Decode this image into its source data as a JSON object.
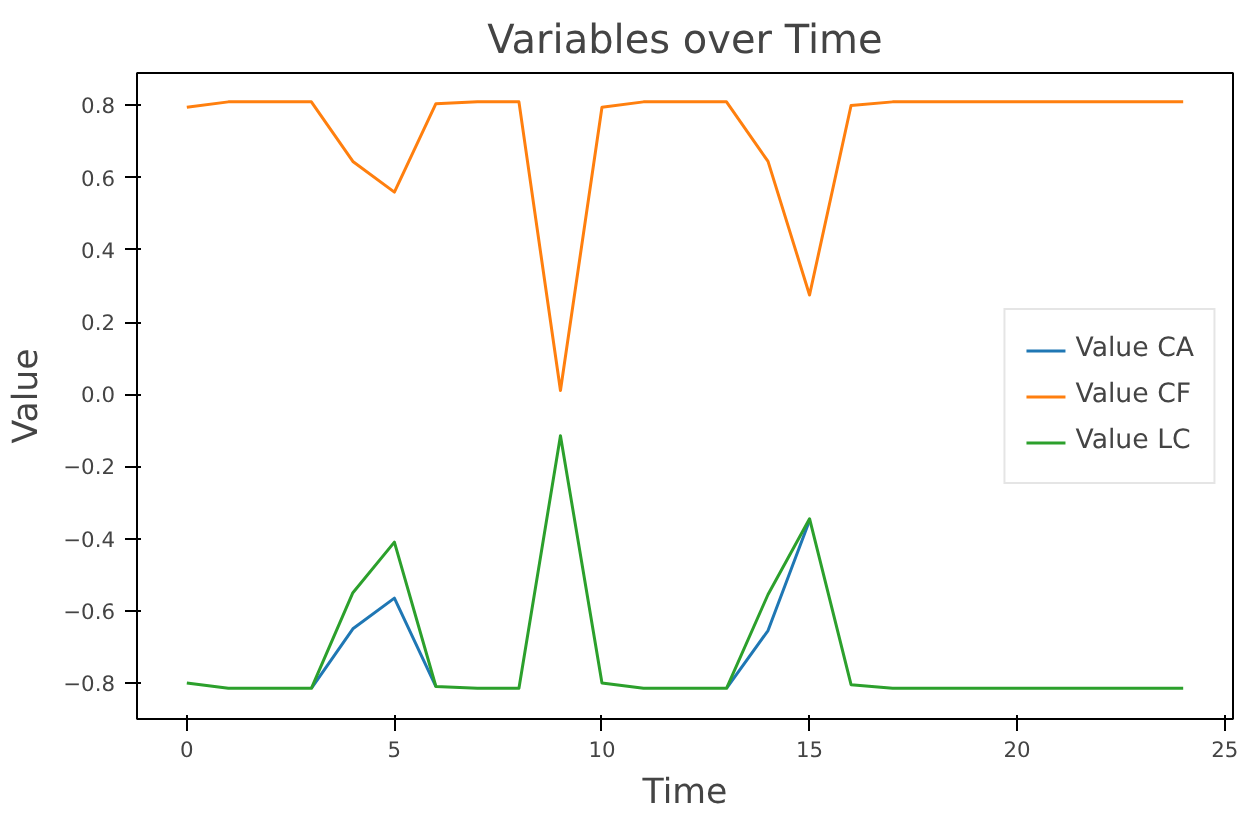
{
  "chart_data": {
    "type": "line",
    "title": "Variables over Time",
    "xlabel": "Time",
    "ylabel": "Value",
    "x": [
      0,
      1,
      2,
      3,
      4,
      5,
      6,
      7,
      8,
      9,
      10,
      11,
      12,
      13,
      14,
      15,
      16,
      17,
      18,
      19,
      20,
      21,
      22,
      23,
      24
    ],
    "series": [
      {
        "name": "Value CA",
        "color": "#1f77b4",
        "values": [
          null,
          null,
          null,
          -0.815,
          -0.65,
          -0.565,
          -0.81,
          null,
          null,
          null,
          null,
          null,
          null,
          -0.815,
          -0.655,
          -0.35,
          null,
          null,
          null,
          null,
          null,
          null,
          null,
          null,
          null
        ]
      },
      {
        "name": "Value CF",
        "color": "#ff7f0e",
        "values": [
          0.795,
          0.81,
          0.81,
          0.81,
          0.645,
          0.56,
          0.805,
          0.81,
          0.81,
          0.01,
          0.795,
          0.81,
          0.81,
          0.81,
          0.645,
          0.275,
          0.8,
          0.81,
          0.81,
          0.81,
          0.81,
          0.81,
          0.81,
          0.81,
          0.81
        ]
      },
      {
        "name": "Value LC",
        "color": "#2ca02c",
        "values": [
          -0.8,
          -0.815,
          -0.815,
          -0.815,
          -0.55,
          -0.41,
          -0.81,
          -0.815,
          -0.815,
          -0.115,
          -0.8,
          -0.815,
          -0.815,
          -0.815,
          -0.555,
          -0.345,
          -0.805,
          -0.815,
          -0.815,
          -0.815,
          -0.815,
          -0.815,
          -0.815,
          -0.815,
          -0.815
        ]
      }
    ],
    "xlim": [
      -1.2,
      25.2
    ],
    "ylim": [
      -0.9,
      0.89
    ],
    "xticks": [
      0,
      5,
      10,
      15,
      20,
      25
    ],
    "yticks": [
      {
        "value": -0.8,
        "label": "−0.8"
      },
      {
        "value": -0.6,
        "label": "−0.6"
      },
      {
        "value": -0.4,
        "label": "−0.4"
      },
      {
        "value": -0.2,
        "label": "−0.2"
      },
      {
        "value": 0,
        "label": "0.0"
      },
      {
        "value": 0.2,
        "label": "0.2"
      },
      {
        "value": 0.4,
        "label": "0.4"
      },
      {
        "value": 0.6,
        "label": "0.6"
      },
      {
        "value": 0.8,
        "label": "0.8"
      }
    ],
    "legend": "right",
    "grid": false,
    "line_style": "solid"
  }
}
